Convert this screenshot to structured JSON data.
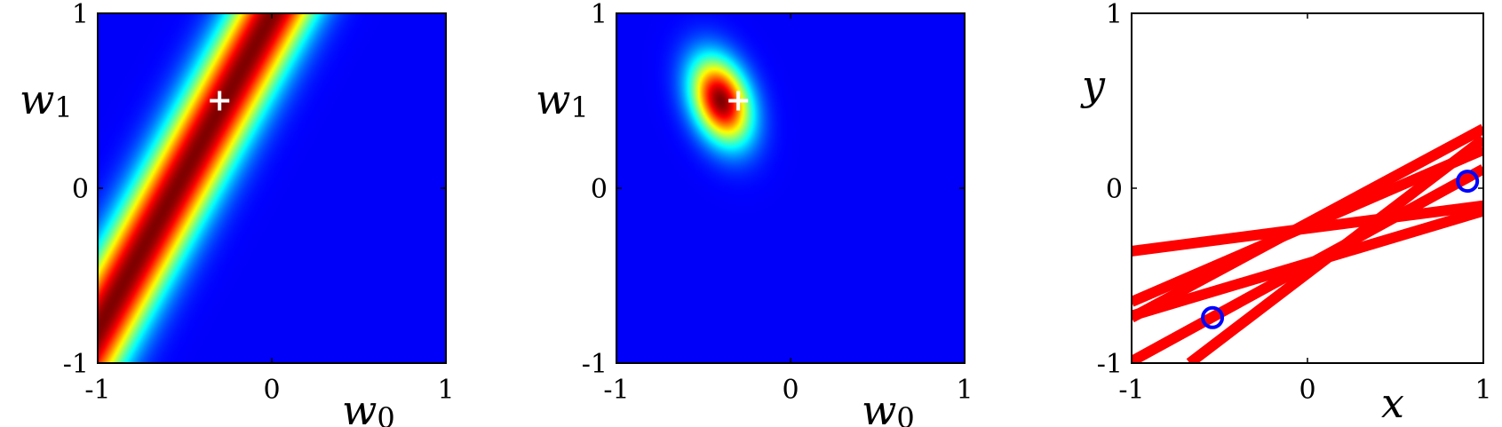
{
  "chart_data": [
    {
      "type": "heatmap",
      "title": "",
      "xlabel": "w",
      "xlabel_sub": "0",
      "ylabel": "w",
      "ylabel_sub": "1",
      "xlim": [
        -1,
        1
      ],
      "ylim": [
        -1,
        1
      ],
      "xticks": [
        "-1",
        "0",
        "1"
      ],
      "yticks": [
        "-1",
        "0",
        "1"
      ],
      "colormap": "jet",
      "density": {
        "kind": "likelihood",
        "x": -0.55,
        "y": -0.29,
        "slope": -1.8,
        "sigma": 0.17
      },
      "marker": {
        "symbol": "+",
        "x": -0.3,
        "y": 0.5,
        "color": "#ffffff"
      }
    },
    {
      "type": "heatmap",
      "title": "",
      "xlabel": "w",
      "xlabel_sub": "0",
      "ylabel": "w",
      "ylabel_sub": "1",
      "xlim": [
        -1,
        1
      ],
      "ylim": [
        -1,
        1
      ],
      "xticks": [
        "-1",
        "0",
        "1"
      ],
      "yticks": [
        "-1",
        "0",
        "1"
      ],
      "colormap": "jet",
      "density": {
        "kind": "gaussian",
        "mean": [
          -0.4,
          0.5
        ],
        "sx": 0.12,
        "sy": 0.17,
        "rho": -0.3
      },
      "marker": {
        "symbol": "+",
        "x": -0.3,
        "y": 0.5,
        "color": "#ffffff"
      }
    },
    {
      "type": "line",
      "title": "",
      "xlabel": "x",
      "ylabel": "y",
      "xlim": [
        -1,
        1
      ],
      "ylim": [
        -1,
        1
      ],
      "xticks": [
        "-1",
        "0",
        "1"
      ],
      "yticks": [
        "-1",
        "0",
        "1"
      ],
      "line_color": "#ff0000",
      "point_color": "#0000ff",
      "series": [
        {
          "type": "line",
          "x": [
            -1,
            1
          ],
          "y": [
            -0.36,
            -0.1
          ]
        },
        {
          "type": "line",
          "x": [
            -1,
            1
          ],
          "y": [
            -0.65,
            0.22
          ]
        },
        {
          "type": "line",
          "x": [
            -1,
            1
          ],
          "y": [
            -0.73,
            -0.13
          ]
        },
        {
          "type": "line",
          "x": [
            -1,
            1
          ],
          "y": [
            -0.74,
            0.34
          ]
        },
        {
          "type": "line",
          "x": [
            -1,
            1
          ],
          "y": [
            -0.99,
            0.11
          ]
        },
        {
          "type": "line",
          "x": [
            -0.67,
            1
          ],
          "y": [
            -1.0,
            0.28
          ]
        }
      ],
      "points": [
        {
          "x": -0.54,
          "y": -0.74
        },
        {
          "x": 0.91,
          "y": 0.04
        }
      ]
    }
  ]
}
